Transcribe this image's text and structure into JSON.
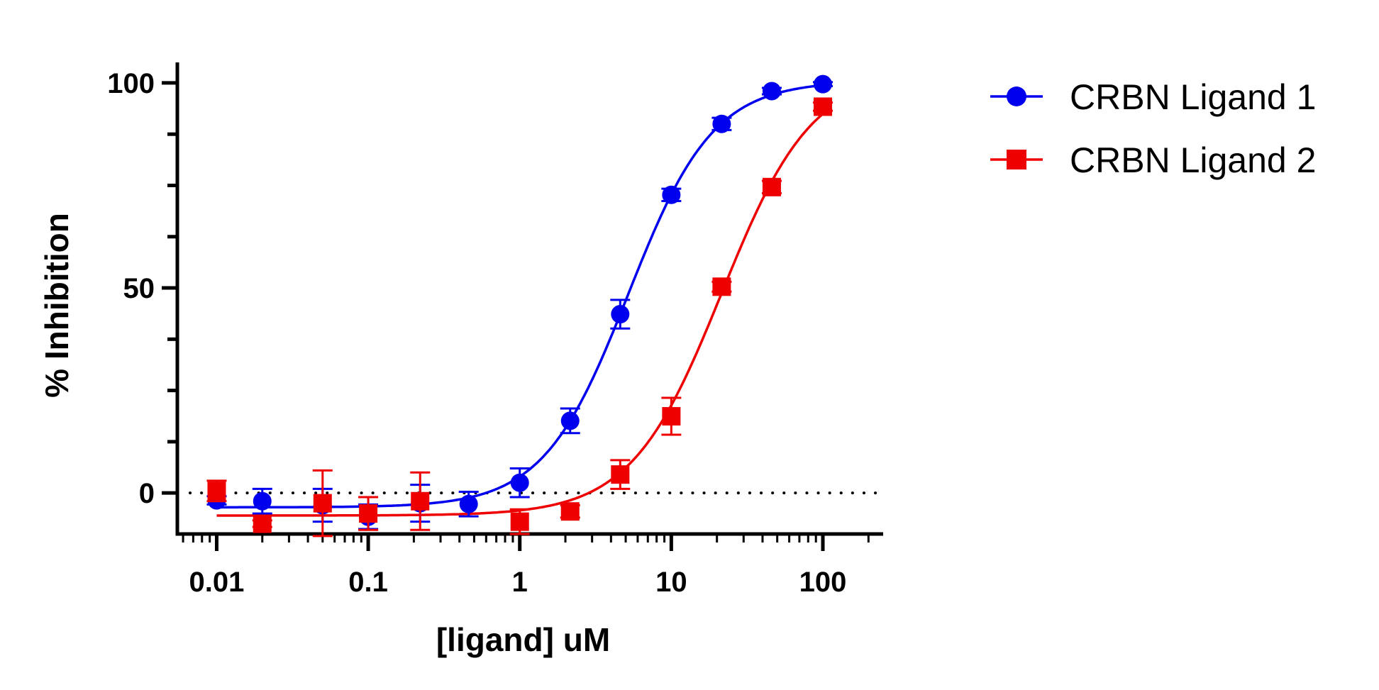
{
  "chart_data": {
    "type": "scatter",
    "title": "",
    "xlabel": "[ligand] uM",
    "ylabel": "% Inhibition",
    "xscale": "log",
    "xlim": [
      0.0055,
      250
    ],
    "ylim": [
      -10,
      105
    ],
    "x_ticks": [
      0.01,
      0.1,
      1,
      10,
      100
    ],
    "x_tick_labels": [
      "0.01",
      "0.1",
      "1",
      "10",
      "100"
    ],
    "y_ticks": [
      0,
      50,
      100
    ],
    "y_tick_labels": [
      "0",
      "50",
      "100"
    ],
    "y_minor_step": 12.5,
    "reference_line": {
      "y": 0,
      "style": "dotted"
    },
    "legend": {
      "position": "top-right-outside"
    },
    "series": [
      {
        "name": "CRBN Ligand 1",
        "color": "#0000ee",
        "marker": "circle",
        "x": [
          0.01,
          0.02,
          0.05,
          0.1,
          0.22,
          0.46,
          1,
          2.15,
          4.6,
          10,
          21.5,
          46,
          100
        ],
        "y": [
          -1.8,
          -2.0,
          -3.0,
          -5.8,
          -2.5,
          -2.7,
          2.5,
          17.6,
          43.6,
          72.7,
          90.0,
          98.0,
          99.7
        ],
        "err": [
          1.0,
          3.0,
          4.0,
          3.0,
          4.5,
          3.0,
          3.5,
          3.0,
          3.5,
          1.5,
          1.5,
          0.8,
          0.5
        ],
        "fit": {
          "bottom": -3.5,
          "top": 100.5,
          "ec50": 5.2,
          "hill": 1.55
        }
      },
      {
        "name": "CRBN Ligand 2",
        "color": "#ee0000",
        "marker": "square",
        "x": [
          0.01,
          0.02,
          0.05,
          0.1,
          0.22,
          1,
          2.15,
          4.6,
          10,
          21.5,
          46,
          100
        ],
        "y": [
          0.5,
          -7.5,
          -2.5,
          -5.0,
          -2.0,
          -7.0,
          -4.5,
          4.5,
          18.7,
          50.3,
          74.6,
          94.2
        ],
        "err": [
          2.5,
          0.8,
          8.0,
          4.0,
          7.0,
          3.0,
          1.5,
          3.5,
          4.5,
          1.2,
          1.5,
          1.0
        ],
        "fit": {
          "bottom": -5.5,
          "top": 103,
          "ec50": 21.5,
          "hill": 1.45
        }
      }
    ]
  }
}
